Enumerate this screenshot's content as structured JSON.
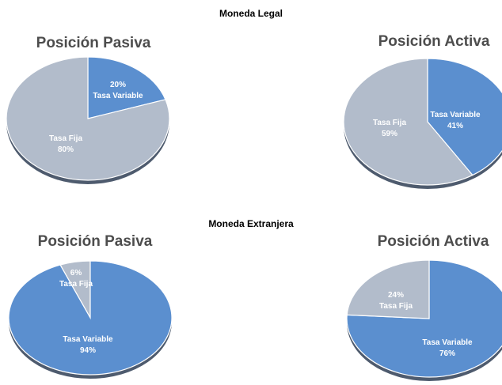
{
  "sections": [
    {
      "title": "Moneda Legal"
    },
    {
      "title": "Moneda Extranjera"
    }
  ],
  "colors": {
    "variable": "#5b8fcf",
    "fija": "#b2bccb",
    "shadow": "#2f3e55"
  },
  "chart_data": [
    {
      "type": "pie",
      "section": "Moneda Legal",
      "title": "Posición Pasiva",
      "slices": [
        {
          "name": "Tasa Variable",
          "value": 20,
          "label": "20%",
          "color": "#5b8fcf"
        },
        {
          "name": "Tasa Fija",
          "value": 80,
          "label": "80%",
          "color": "#b2bccb"
        }
      ]
    },
    {
      "type": "pie",
      "section": "Moneda Legal",
      "title": "Posición Activa",
      "slices": [
        {
          "name": "Tasa Variable",
          "value": 41,
          "label": "41%",
          "color": "#5b8fcf"
        },
        {
          "name": "Tasa Fija",
          "value": 59,
          "label": "59%",
          "color": "#b2bccb"
        }
      ]
    },
    {
      "type": "pie",
      "section": "Moneda Extranjera",
      "title": "Posición Pasiva",
      "slices": [
        {
          "name": "Tasa Fija",
          "value": 6,
          "label": "6%",
          "color": "#b2bccb"
        },
        {
          "name": "Tasa Variable",
          "value": 94,
          "label": "94%",
          "color": "#5b8fcf"
        }
      ]
    },
    {
      "type": "pie",
      "section": "Moneda Extranjera",
      "title": "Posición Activa",
      "slices": [
        {
          "name": "Tasa Variable",
          "value": 76,
          "label": "76%",
          "color": "#5b8fcf"
        },
        {
          "name": "Tasa Fija",
          "value": 24,
          "label": "24%",
          "color": "#b2bccb"
        }
      ]
    }
  ]
}
